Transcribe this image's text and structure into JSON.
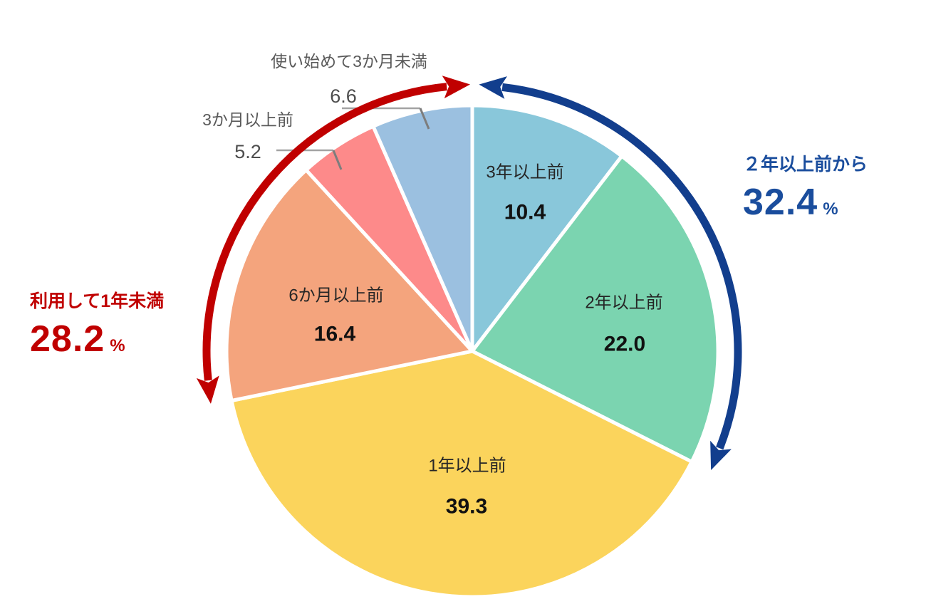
{
  "chart_data": {
    "type": "pie",
    "title": "",
    "unit": "%",
    "direction": "clockwise",
    "start_angle_deg": 0,
    "legend": "none",
    "slices": [
      {
        "label": "3年以上前",
        "value": 10.4,
        "value_label": "10.4",
        "color": "#89C7DA",
        "label_placement": "inside"
      },
      {
        "label": "2年以上前",
        "value": 22.0,
        "value_label": "22.0",
        "color": "#7BD4B0",
        "label_placement": "inside"
      },
      {
        "label": "1年以上前",
        "value": 39.3,
        "value_label": "39.3",
        "color": "#FBD45C",
        "label_placement": "inside"
      },
      {
        "label": "6か月以上前",
        "value": 16.4,
        "value_label": "16.4",
        "color": "#F4A47D",
        "label_placement": "inside"
      },
      {
        "label": "3か月以上前",
        "value": 5.2,
        "value_label": "5.2",
        "color": "#FD8A8A",
        "label_placement": "outside"
      },
      {
        "label": "使い始めて3か月未満",
        "value": 6.6,
        "value_label": "6.6",
        "color": "#9BC0E0",
        "label_placement": "outside"
      }
    ],
    "annotations": {
      "older_than_2y": {
        "label": "２年以上前から",
        "value": "32.4",
        "unit": "%",
        "text_color": "#1A4D9D",
        "arrow_color": "#123E8D",
        "span_percent": 32.4,
        "arc_side": "right"
      },
      "less_than_1y": {
        "label": "利用して1年未満",
        "value": "28.2",
        "unit": "%",
        "text_color": "#C00000",
        "arrow_color": "#C00000",
        "span_percent": 28.2,
        "arc_side": "left"
      }
    },
    "leader_line_color": "#A3A3A3",
    "slice_border_color": "#FFFFFF"
  }
}
